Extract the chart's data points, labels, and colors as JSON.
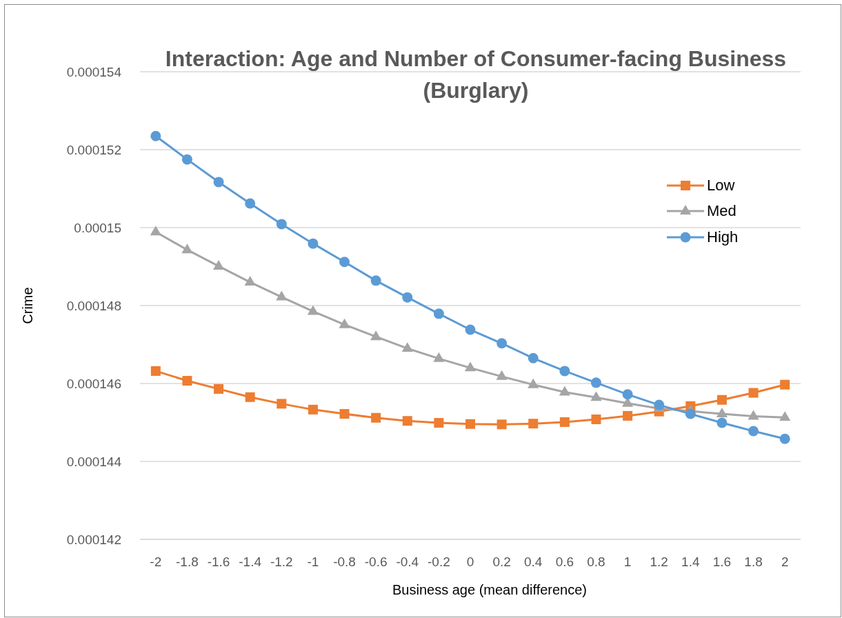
{
  "chart_data": {
    "type": "line",
    "title": "Interaction: Age and Number of Consumer-facing Business (Burglary)",
    "xlabel": "Business age (mean difference)",
    "ylabel": "Crime",
    "categories": [
      "-2",
      "-1.8",
      "-1.6",
      "-1.4",
      "-1.2",
      "-1",
      "-0.8",
      "-0.6",
      "-0.4",
      "-0.2",
      "0",
      "0.2",
      "0.4",
      "0.6",
      "0.8",
      "1",
      "1.2",
      "1.4",
      "1.6",
      "1.8",
      "2"
    ],
    "series": [
      {
        "name": "Low",
        "color": "#ed7d31",
        "marker": "square",
        "values": [
          0.00014632,
          0.00014607,
          0.00014586,
          0.00014565,
          0.00014548,
          0.00014533,
          0.00014522,
          0.00014512,
          0.00014504,
          0.00014499,
          0.00014496,
          0.00014495,
          0.00014497,
          0.00014501,
          0.00014508,
          0.00014517,
          0.00014528,
          0.00014542,
          0.00014558,
          0.00014576,
          0.00014597
        ]
      },
      {
        "name": "Med",
        "color": "#a5a5a5",
        "marker": "triangle",
        "values": [
          0.00014989,
          0.00014943,
          0.00014901,
          0.0001486,
          0.00014822,
          0.00014785,
          0.00014751,
          0.0001472,
          0.0001469,
          0.00014664,
          0.0001464,
          0.00014618,
          0.00014597,
          0.00014578,
          0.00014564,
          0.00014549,
          0.00014536,
          0.00014529,
          0.00014522,
          0.00014516,
          0.00014513
        ]
      },
      {
        "name": "High",
        "color": "#5b9bd5",
        "marker": "circle",
        "values": [
          0.00015235,
          0.00015175,
          0.00015117,
          0.00015062,
          0.00015009,
          0.00014959,
          0.00014912,
          0.00014864,
          0.00014821,
          0.00014779,
          0.00014738,
          0.00014703,
          0.00014665,
          0.00014632,
          0.00014602,
          0.00014572,
          0.00014545,
          0.00014522,
          0.00014499,
          0.00014478,
          0.00014458
        ]
      }
    ],
    "ylim": [
      0.000142,
      0.000154
    ],
    "yticks": [
      0.000142,
      0.000144,
      0.000146,
      0.000148,
      0.00015,
      0.000152,
      0.000154
    ],
    "grid": "y",
    "legend": "top right"
  }
}
